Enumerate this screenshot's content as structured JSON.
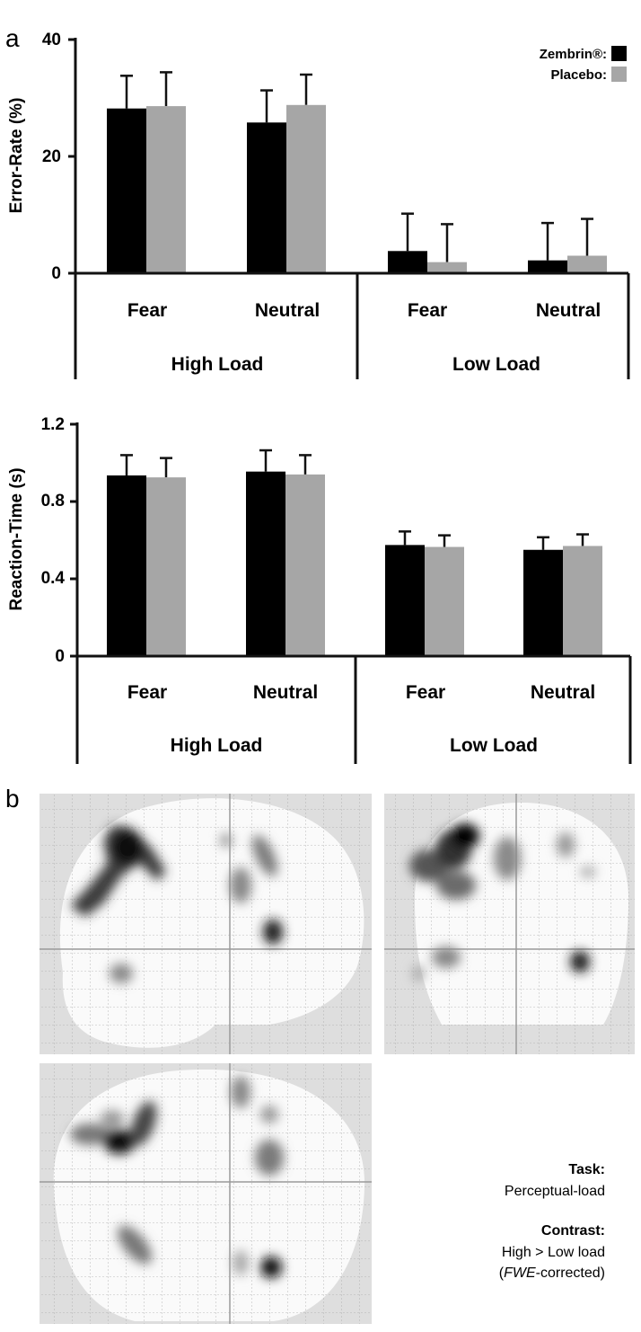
{
  "panels": {
    "a": "a",
    "b": "b"
  },
  "legend": {
    "zembrin": "Zembrin®:",
    "placebo": "Placebo:"
  },
  "colors": {
    "zembrin": "#000000",
    "placebo": "#a6a6a6"
  },
  "groups": {
    "high": "High Load",
    "low": "Low Load"
  },
  "chart_data": [
    {
      "type": "bar",
      "ylabel": "Error-Rate (%)",
      "ylim": [
        0,
        40
      ],
      "yticks": [
        "0",
        "20",
        "40"
      ],
      "categories": [
        "Fear",
        "Neutral",
        "Fear",
        "Neutral"
      ],
      "groups": [
        "High Load",
        "Low Load"
      ],
      "series": [
        {
          "name": "Zembrin®",
          "values": [
            28.2,
            25.8,
            3.8,
            2.2
          ],
          "errors": [
            5.6,
            5.5,
            6.4,
            6.4
          ]
        },
        {
          "name": "Placebo",
          "values": [
            28.6,
            28.8,
            1.9,
            3.0
          ],
          "errors": [
            5.8,
            5.2,
            6.5,
            6.3
          ]
        }
      ]
    },
    {
      "type": "bar",
      "ylabel": "Reaction-Time (s)",
      "ylim": [
        0,
        1.2
      ],
      "yticks": [
        "0",
        "0.4",
        "0.8",
        "1.2"
      ],
      "categories": [
        "Fear",
        "Neutral",
        "Fear",
        "Neutral"
      ],
      "groups": [
        "High Load",
        "Low Load"
      ],
      "series": [
        {
          "name": "Zembrin®",
          "values": [
            0.935,
            0.955,
            0.575,
            0.55
          ],
          "errors": [
            0.105,
            0.11,
            0.07,
            0.065
          ]
        },
        {
          "name": "Placebo",
          "values": [
            0.925,
            0.94,
            0.565,
            0.57
          ],
          "errors": [
            0.1,
            0.1,
            0.06,
            0.06
          ]
        }
      ]
    }
  ],
  "brain_note": {
    "task_label": "Task:",
    "task_value": "Perceptual-load",
    "contrast_label": "Contrast:",
    "contrast_value": "High > Low load",
    "correction_open": "(",
    "correction_em": "FWE",
    "correction_rest": "-corrected)"
  }
}
